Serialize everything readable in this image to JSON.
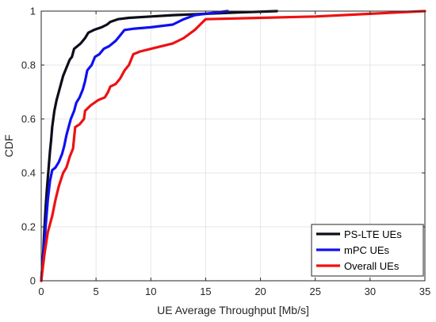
{
  "chart_data": {
    "type": "line",
    "xlabel": "UE Average Throughput [Mb/s]",
    "ylabel": "CDF",
    "xlim": [
      0,
      35
    ],
    "ylim": [
      0,
      1
    ],
    "xticks": [
      0,
      5,
      10,
      15,
      20,
      25,
      30,
      35
    ],
    "yticks": [
      0,
      0.2,
      0.4,
      0.6,
      0.8,
      1
    ],
    "ytick_labels": [
      "0",
      "0.2",
      "0.4",
      "0.6",
      "0.8",
      "1"
    ],
    "grid": true,
    "legend_position": "bottom-right",
    "series": [
      {
        "name": "PS-LTE UEs",
        "color": "#0d0d1a",
        "points": [
          [
            0,
            0
          ],
          [
            0.1,
            0.05
          ],
          [
            0.2,
            0.12
          ],
          [
            0.3,
            0.2
          ],
          [
            0.4,
            0.27
          ],
          [
            0.5,
            0.33
          ],
          [
            0.6,
            0.38
          ],
          [
            0.7,
            0.43
          ],
          [
            0.8,
            0.48
          ],
          [
            0.9,
            0.52
          ],
          [
            1.0,
            0.57
          ],
          [
            1.1,
            0.6
          ],
          [
            1.2,
            0.63
          ],
          [
            1.4,
            0.67
          ],
          [
            1.6,
            0.7
          ],
          [
            1.8,
            0.73
          ],
          [
            2.0,
            0.76
          ],
          [
            2.2,
            0.78
          ],
          [
            2.4,
            0.8
          ],
          [
            2.6,
            0.82
          ],
          [
            2.8,
            0.83
          ],
          [
            3.0,
            0.86
          ],
          [
            3.3,
            0.87
          ],
          [
            3.6,
            0.88
          ],
          [
            4.0,
            0.9
          ],
          [
            4.3,
            0.92
          ],
          [
            4.8,
            0.93
          ],
          [
            5.5,
            0.94
          ],
          [
            6.0,
            0.95
          ],
          [
            6.3,
            0.96
          ],
          [
            7.0,
            0.97
          ],
          [
            8.0,
            0.975
          ],
          [
            10,
            0.98
          ],
          [
            12,
            0.985
          ],
          [
            15,
            0.99
          ],
          [
            18,
            0.995
          ],
          [
            21.5,
            1.0
          ]
        ]
      },
      {
        "name": "mPC UEs",
        "color": "#1010f0",
        "points": [
          [
            0,
            0
          ],
          [
            0.2,
            0.1
          ],
          [
            0.4,
            0.2
          ],
          [
            0.6,
            0.3
          ],
          [
            0.8,
            0.37
          ],
          [
            1.0,
            0.41
          ],
          [
            1.3,
            0.42
          ],
          [
            1.6,
            0.44
          ],
          [
            1.9,
            0.47
          ],
          [
            2.1,
            0.5
          ],
          [
            2.3,
            0.54
          ],
          [
            2.5,
            0.57
          ],
          [
            2.7,
            0.6
          ],
          [
            3.0,
            0.63
          ],
          [
            3.2,
            0.66
          ],
          [
            3.5,
            0.68
          ],
          [
            3.8,
            0.71
          ],
          [
            4.0,
            0.74
          ],
          [
            4.2,
            0.78
          ],
          [
            4.6,
            0.8
          ],
          [
            4.9,
            0.83
          ],
          [
            5.3,
            0.84
          ],
          [
            5.7,
            0.86
          ],
          [
            6.2,
            0.87
          ],
          [
            6.8,
            0.89
          ],
          [
            7.2,
            0.91
          ],
          [
            7.6,
            0.93
          ],
          [
            8.5,
            0.935
          ],
          [
            10,
            0.94
          ],
          [
            12,
            0.95
          ],
          [
            13,
            0.97
          ],
          [
            14,
            0.985
          ],
          [
            15,
            0.99
          ],
          [
            16,
            0.995
          ],
          [
            17,
            1.0
          ]
        ]
      },
      {
        "name": "Overall UEs",
        "color": "#ee1111",
        "points": [
          [
            0,
            0
          ],
          [
            0.3,
            0.1
          ],
          [
            0.6,
            0.18
          ],
          [
            1.0,
            0.24
          ],
          [
            1.3,
            0.3
          ],
          [
            1.6,
            0.35
          ],
          [
            2.0,
            0.4
          ],
          [
            2.3,
            0.42
          ],
          [
            2.6,
            0.46
          ],
          [
            2.9,
            0.49
          ],
          [
            3.0,
            0.53
          ],
          [
            3.1,
            0.57
          ],
          [
            3.5,
            0.58
          ],
          [
            3.9,
            0.6
          ],
          [
            4.0,
            0.63
          ],
          [
            4.5,
            0.65
          ],
          [
            5.2,
            0.67
          ],
          [
            5.8,
            0.68
          ],
          [
            6.1,
            0.7
          ],
          [
            6.3,
            0.72
          ],
          [
            6.8,
            0.73
          ],
          [
            7.2,
            0.75
          ],
          [
            7.6,
            0.78
          ],
          [
            8.0,
            0.8
          ],
          [
            8.4,
            0.84
          ],
          [
            9.0,
            0.85
          ],
          [
            10,
            0.86
          ],
          [
            11,
            0.87
          ],
          [
            12,
            0.88
          ],
          [
            13,
            0.9
          ],
          [
            14,
            0.93
          ],
          [
            14.5,
            0.95
          ],
          [
            15,
            0.97
          ],
          [
            20,
            0.975
          ],
          [
            25,
            0.98
          ],
          [
            30,
            0.99
          ],
          [
            35,
            1.0
          ]
        ]
      }
    ]
  }
}
